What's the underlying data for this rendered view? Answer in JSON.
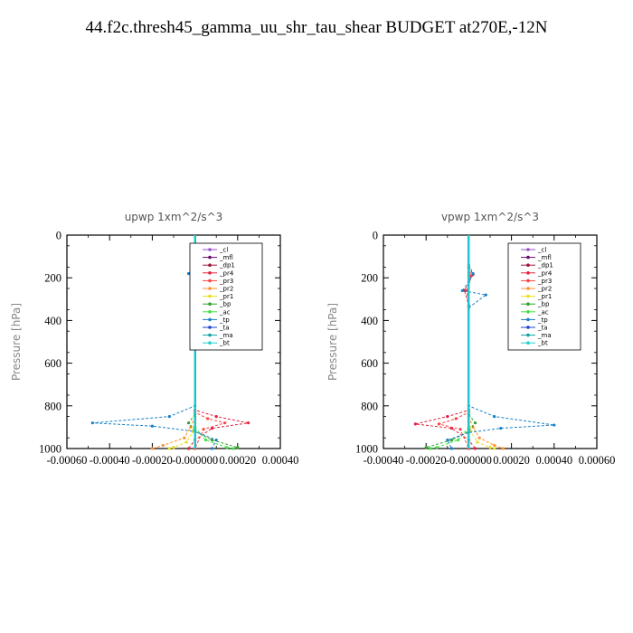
{
  "title": "44.f2c.thresh45_gamma_uu_shr_tau_shear  BUDGET at270E,-12N",
  "chart_data": [
    {
      "type": "line",
      "title": "upwp   1xm^2/s^3",
      "ylabel": "Pressure [hPa]",
      "xlim": [
        -0.0006,
        0.0004
      ],
      "ylim": [
        1000,
        0
      ],
      "x_ticks": [
        "-0.00060",
        "-0.00040",
        "-0.00020",
        "-0.000000",
        "0.00020",
        "0.00040"
      ],
      "y_ticks": [
        "0",
        "200",
        "400",
        "600",
        "800",
        "1000"
      ],
      "legend_position": "top-right",
      "series": [
        {
          "name": "_cl",
          "color": "#9a4fcf",
          "points": [
            [
              0,
              0
            ],
            [
              0,
              1000
            ]
          ]
        },
        {
          "name": "_mfl",
          "color": "#6a0d6a",
          "points": [
            [
              0,
              0
            ],
            [
              0,
              1000
            ]
          ]
        },
        {
          "name": "_dp1",
          "color": "#a0173c",
          "points": [
            [
              0,
              0
            ],
            [
              0,
              1000
            ]
          ]
        },
        {
          "name": "_pr4",
          "color": "#e0203c",
          "points": [
            [
              0,
              150
            ],
            [
              1.5e-05,
              175
            ],
            [
              -1e-05,
              200
            ],
            [
              1e-05,
              270
            ],
            [
              0,
              330
            ],
            [
              0,
              820
            ],
            [
              0.0001,
              850
            ],
            [
              0.00025,
              880
            ],
            [
              8e-05,
              905
            ],
            [
              0,
              960
            ],
            [
              -3e-05,
              1000
            ]
          ]
        },
        {
          "name": "_pr3",
          "color": "#ff4040",
          "points": [
            [
              0,
              150
            ],
            [
              1e-05,
              190
            ],
            [
              -1e-05,
              260
            ],
            [
              0,
              330
            ],
            [
              0,
              830
            ],
            [
              6e-05,
              860
            ],
            [
              0.00014,
              880
            ],
            [
              4e-05,
              910
            ],
            [
              0,
              1000
            ]
          ]
        },
        {
          "name": "_pr2",
          "color": "#ff9030",
          "points": [
            [
              0,
              850
            ],
            [
              -2e-05,
              900
            ],
            [
              -5e-05,
              950
            ],
            [
              -0.00015,
              985
            ],
            [
              -0.0002,
              1000
            ]
          ]
        },
        {
          "name": "_pr1",
          "color": "#e8e020",
          "points": [
            [
              0,
              850
            ],
            [
              -1e-05,
              920
            ],
            [
              -4e-05,
              970
            ],
            [
              -0.0001,
              995
            ],
            [
              -0.00012,
              1000
            ]
          ]
        },
        {
          "name": "_bp",
          "color": "#30a030",
          "points": [
            [
              0,
              840
            ],
            [
              -3e-05,
              880
            ],
            [
              0,
              920
            ],
            [
              8e-05,
              960
            ],
            [
              0.0002,
              995
            ]
          ]
        },
        {
          "name": "_ac",
          "color": "#40e040",
          "points": [
            [
              0,
              900
            ],
            [
              5e-05,
              960
            ],
            [
              0.00015,
              995
            ],
            [
              0.00018,
              1000
            ]
          ]
        },
        {
          "name": "_tp",
          "color": "#1880c8",
          "points": [
            [
              0,
              140
            ],
            [
              -3e-05,
              180
            ],
            [
              0,
              220
            ],
            [
              4e-05,
              280
            ],
            [
              0,
              340
            ],
            [
              0,
              800
            ],
            [
              -0.00012,
              850
            ],
            [
              -0.00048,
              880
            ],
            [
              -0.0002,
              895
            ],
            [
              0,
              920
            ],
            [
              0.0001,
              960
            ],
            [
              8e-05,
              1000
            ]
          ]
        },
        {
          "name": "_ta",
          "color": "#2040d0",
          "points": [
            [
              0,
              0
            ],
            [
              0,
              1000
            ]
          ]
        },
        {
          "name": "_ma",
          "color": "#10a0a0",
          "points": [
            [
              0,
              0
            ],
            [
              0,
              1000
            ]
          ]
        },
        {
          "name": "_bt",
          "color": "#20d0d0",
          "points": [
            [
              0,
              0
            ],
            [
              0,
              1000
            ]
          ]
        }
      ]
    },
    {
      "type": "line",
      "title": "vpwp   1xm^2/s^3",
      "ylabel": "Pressure [hPa]",
      "xlim": [
        -0.0004,
        0.0006
      ],
      "ylim": [
        1000,
        0
      ],
      "x_ticks": [
        "-0.00040",
        "-0.00020",
        "-0.000000",
        "0.00020",
        "0.00040",
        "0.00060"
      ],
      "y_ticks": [
        "0",
        "200",
        "400",
        "600",
        "800",
        "1000"
      ],
      "legend_position": "top-right",
      "series": [
        {
          "name": "_cl",
          "color": "#9a4fcf",
          "points": [
            [
              0,
              0
            ],
            [
              0,
              1000
            ]
          ]
        },
        {
          "name": "_mfl",
          "color": "#6a0d6a",
          "points": [
            [
              0,
              0
            ],
            [
              0,
              1000
            ]
          ]
        },
        {
          "name": "_dp1",
          "color": "#a0173c",
          "points": [
            [
              0,
              0
            ],
            [
              0,
              1000
            ]
          ]
        },
        {
          "name": "_pr4",
          "color": "#e0203c",
          "points": [
            [
              0,
              150
            ],
            [
              2e-05,
              185
            ],
            [
              -2e-05,
              260
            ],
            [
              0,
              330
            ],
            [
              0,
              820
            ],
            [
              -0.0001,
              850
            ],
            [
              -0.00025,
              885
            ],
            [
              -8e-05,
              905
            ],
            [
              0,
              960
            ],
            [
              3e-05,
              1000
            ]
          ]
        },
        {
          "name": "_pr3",
          "color": "#ff4040",
          "points": [
            [
              0,
              150
            ],
            [
              1e-05,
              190
            ],
            [
              -1e-05,
              260
            ],
            [
              0,
              330
            ],
            [
              0,
              830
            ],
            [
              -6e-05,
              860
            ],
            [
              -0.00014,
              885
            ],
            [
              -4e-05,
              910
            ],
            [
              0,
              1000
            ]
          ]
        },
        {
          "name": "_pr2",
          "color": "#ff9030",
          "points": [
            [
              0,
              850
            ],
            [
              2e-05,
              900
            ],
            [
              5e-05,
              950
            ],
            [
              0.00012,
              985
            ],
            [
              0.00016,
              1000
            ]
          ]
        },
        {
          "name": "_pr1",
          "color": "#e8e020",
          "points": [
            [
              0,
              850
            ],
            [
              1e-05,
              920
            ],
            [
              4e-05,
              970
            ],
            [
              0.0001,
              995
            ],
            [
              0.00012,
              1000
            ]
          ]
        },
        {
          "name": "_bp",
          "color": "#30a030",
          "points": [
            [
              0,
              840
            ],
            [
              3e-05,
              880
            ],
            [
              0,
              920
            ],
            [
              -8e-05,
              960
            ],
            [
              -0.0002,
              995
            ]
          ]
        },
        {
          "name": "_ac",
          "color": "#40e040",
          "points": [
            [
              0,
              900
            ],
            [
              -5e-05,
              960
            ],
            [
              -0.00015,
              995
            ],
            [
              -0.00018,
              1000
            ]
          ]
        },
        {
          "name": "_tp",
          "color": "#1880c8",
          "points": [
            [
              0,
              140
            ],
            [
              2e-05,
              180
            ],
            [
              0,
              220
            ],
            [
              -3e-05,
              260
            ],
            [
              8e-05,
              280
            ],
            [
              0,
              340
            ],
            [
              0,
              800
            ],
            [
              0.00012,
              850
            ],
            [
              0.0004,
              890
            ],
            [
              0.00015,
              905
            ],
            [
              0,
              925
            ],
            [
              -0.0001,
              960
            ],
            [
              -8e-05,
              1000
            ]
          ]
        },
        {
          "name": "_ta",
          "color": "#2040d0",
          "points": [
            [
              0,
              0
            ],
            [
              0,
              1000
            ]
          ]
        },
        {
          "name": "_ma",
          "color": "#10a0a0",
          "points": [
            [
              0,
              0
            ],
            [
              0,
              1000
            ]
          ]
        },
        {
          "name": "_bt",
          "color": "#20d0d0",
          "points": [
            [
              0,
              0
            ],
            [
              0,
              1000
            ]
          ]
        }
      ]
    }
  ]
}
